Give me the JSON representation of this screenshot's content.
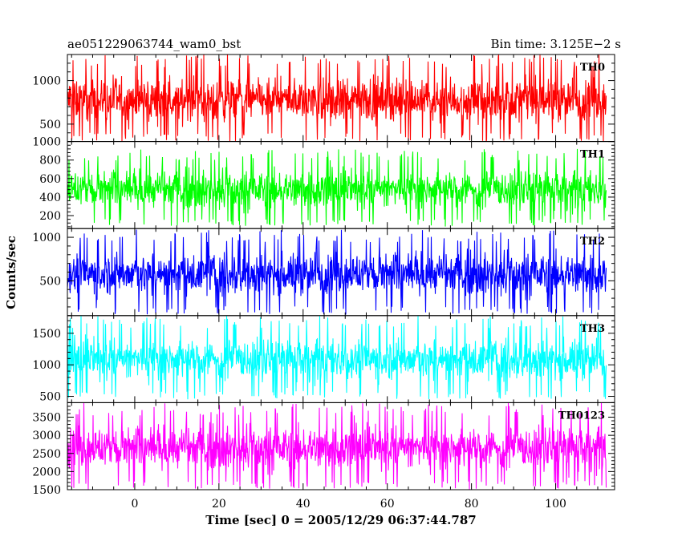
{
  "header": {
    "left_title": "ae051229063744_wam0_bst",
    "right_title": "Bin time: 3.125E−2 s"
  },
  "chart_data": {
    "type": "line",
    "xlabel": "Time [sec] 0 = 2005/12/29 06:37:44.787",
    "ylabel": "Counts/sec",
    "xlim": [
      -16,
      114
    ],
    "x_ticks": [
      0,
      20,
      40,
      60,
      80,
      100
    ],
    "x_range": [
      -16,
      112
    ],
    "bin_time": 0.03125,
    "panels": [
      {
        "name": "TH0",
        "color": "#ff0000",
        "ylim": [
          300,
          1300
        ],
        "y_ticks": [
          500,
          1000
        ],
        "mean": 730,
        "min": 300,
        "max": 1300
      },
      {
        "name": "TH1",
        "color": "#00ff00",
        "ylim": [
          60,
          1000
        ],
        "y_ticks": [
          200,
          400,
          600,
          800,
          1000
        ],
        "mean": 400,
        "min": 80,
        "max": 920
      },
      {
        "name": "TH2",
        "color": "#0000ff",
        "ylim": [
          100,
          1100
        ],
        "y_ticks": [
          500,
          1000
        ],
        "mean": 500,
        "min": 110,
        "max": 1090
      },
      {
        "name": "TH3",
        "color": "#00ffff",
        "ylim": [
          400,
          1780
        ],
        "y_ticks": [
          500,
          1000,
          1500
        ],
        "mean": 1050,
        "min": 450,
        "max": 1780
      },
      {
        "name": "TH0123",
        "color": "#ff00ff",
        "ylim": [
          1500,
          3900
        ],
        "y_ticks": [
          1500,
          2000,
          2500,
          3000,
          3500
        ],
        "mean": 2600,
        "min": 1500,
        "max": 3900
      }
    ]
  }
}
